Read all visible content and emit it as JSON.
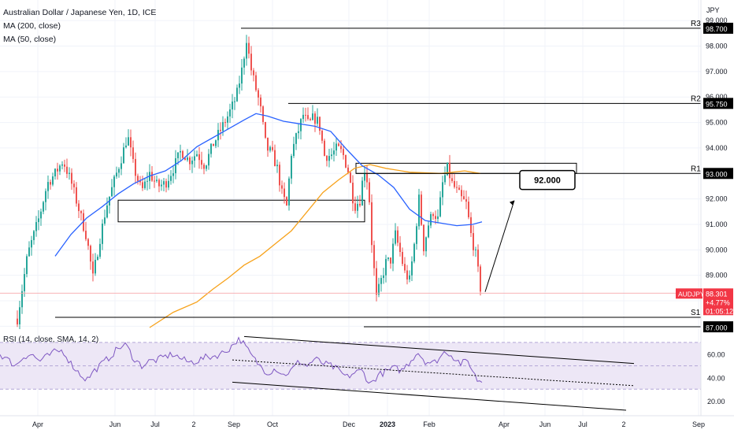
{
  "legend": {
    "title": "Australian Dollar / Japanese Yen, 1D, ICE",
    "ma200": "MA (200, close)",
    "ma50": "MA (50, close)",
    "rsi": "RSI (14, close, SMA, 14, 2)"
  },
  "colors": {
    "up": "#26a69a",
    "down": "#ef5350",
    "ma50": "#2962ff",
    "ma200": "#f7a21b",
    "rsi": "#7e57c2",
    "rsi_band": "#ede7f6",
    "level": "#000000",
    "price_badge": "#f23645"
  },
  "chart_data": {
    "type": "candlestick",
    "symbol": "AUDJPY",
    "currency": "JPY",
    "y_axis": {
      "range": [
        86.95,
        99.5
      ],
      "ticks": [
        "99.000",
        "98.000",
        "97.000",
        "96.000",
        "95.000",
        "94.000",
        "93.000",
        "92.000",
        "91.000",
        "90.000",
        "89.000",
        "88.000",
        "87.000"
      ]
    },
    "x_axis": {
      "ticks": [
        "Apr",
        "Jun",
        "Jul",
        "2",
        "Sep",
        "Oct",
        "Dec",
        "2023",
        "Feb",
        "Apr",
        "Jun",
        "Jul",
        "2",
        "Sep"
      ]
    },
    "last_price": {
      "symbol": "AUDJPY",
      "value": "88.301",
      "change": "+4.77%",
      "countdown": "01:05:12"
    },
    "levels": [
      {
        "label": "R3",
        "value": "98.700",
        "price": 98.7
      },
      {
        "label": "R2",
        "value": "95.750",
        "price": 95.75
      },
      {
        "label": "R1",
        "value": "93.000",
        "price": 93.0
      },
      {
        "label": "S1",
        "value": "87.350",
        "price": 87.35
      }
    ],
    "axis_extra_label": "87.000",
    "target": {
      "label": "92.000",
      "price": 92.0
    },
    "resistance_box": [
      93.0,
      93.4
    ],
    "support_box": [
      91.1,
      91.95
    ],
    "ma50_anchor": [
      [
        70,
        89.75
      ],
      [
        90,
        90.6
      ],
      [
        110,
        91.25
      ],
      [
        130,
        91.7
      ],
      [
        150,
        92.2
      ],
      [
        170,
        92.6
      ],
      [
        190,
        92.9
      ],
      [
        210,
        93.1
      ],
      [
        230,
        93.5
      ],
      [
        250,
        94.05
      ],
      [
        270,
        94.4
      ],
      [
        290,
        94.75
      ],
      [
        310,
        95.1
      ],
      [
        325,
        95.35
      ],
      [
        340,
        95.25
      ],
      [
        360,
        95.05
      ],
      [
        380,
        94.95
      ],
      [
        400,
        94.85
      ],
      [
        420,
        94.65
      ],
      [
        440,
        93.95
      ],
      [
        460,
        93.3
      ],
      [
        480,
        92.95
      ],
      [
        500,
        92.45
      ],
      [
        520,
        91.6
      ],
      [
        540,
        91.15
      ],
      [
        560,
        91.05
      ],
      [
        580,
        90.95
      ],
      [
        600,
        91.0
      ],
      [
        612,
        91.1
      ]
    ],
    "ma200_anchor": [
      [
        190,
        86.95
      ],
      [
        220,
        87.55
      ],
      [
        250,
        87.95
      ],
      [
        270,
        88.45
      ],
      [
        290,
        88.9
      ],
      [
        310,
        89.4
      ],
      [
        330,
        89.75
      ],
      [
        350,
        90.25
      ],
      [
        370,
        90.75
      ],
      [
        390,
        91.5
      ],
      [
        410,
        92.25
      ],
      [
        430,
        92.75
      ],
      [
        450,
        93.2
      ],
      [
        470,
        93.35
      ],
      [
        490,
        93.2
      ],
      [
        520,
        93.05
      ],
      [
        560,
        93.0
      ],
      [
        590,
        93.1
      ],
      [
        610,
        93.0
      ]
    ],
    "price_anchor": [
      [
        22,
        87.3
      ],
      [
        35,
        89.8
      ],
      [
        50,
        91.3
      ],
      [
        60,
        92.6
      ],
      [
        70,
        93.0
      ],
      [
        80,
        93.5
      ],
      [
        90,
        92.7
      ],
      [
        100,
        91.6
      ],
      [
        110,
        90.5
      ],
      [
        118,
        88.9
      ],
      [
        126,
        90.3
      ],
      [
        135,
        91.7
      ],
      [
        145,
        92.7
      ],
      [
        155,
        93.7
      ],
      [
        162,
        94.5
      ],
      [
        170,
        93.2
      ],
      [
        180,
        92.3
      ],
      [
        190,
        93.0
      ],
      [
        200,
        92.5
      ],
      [
        210,
        92.6
      ],
      [
        220,
        93.2
      ],
      [
        230,
        93.9
      ],
      [
        240,
        93.5
      ],
      [
        250,
        93.8
      ],
      [
        260,
        93.3
      ],
      [
        270,
        94.1
      ],
      [
        280,
        94.7
      ],
      [
        290,
        95.3
      ],
      [
        300,
        96.0
      ],
      [
        308,
        97.2
      ],
      [
        313,
        98.3
      ],
      [
        318,
        97.2
      ],
      [
        325,
        96.3
      ],
      [
        330,
        95.7
      ],
      [
        338,
        94.0
      ],
      [
        345,
        93.8
      ],
      [
        352,
        93.2
      ],
      [
        358,
        92.2
      ],
      [
        364,
        91.7
      ],
      [
        370,
        93.8
      ],
      [
        378,
        94.6
      ],
      [
        385,
        95.3
      ],
      [
        392,
        94.9
      ],
      [
        398,
        95.2
      ],
      [
        405,
        95.0
      ],
      [
        412,
        93.7
      ],
      [
        420,
        93.7
      ],
      [
        428,
        94.0
      ],
      [
        435,
        93.8
      ],
      [
        442,
        93.1
      ],
      [
        450,
        91.7
      ],
      [
        458,
        92.0
      ],
      [
        462,
        93.3
      ],
      [
        468,
        92.5
      ],
      [
        472,
        90.3
      ],
      [
        478,
        88.1
      ],
      [
        484,
        88.8
      ],
      [
        490,
        89.5
      ],
      [
        496,
        89.6
      ],
      [
        502,
        90.6
      ],
      [
        508,
        89.9
      ],
      [
        514,
        89.1
      ],
      [
        520,
        88.8
      ],
      [
        526,
        90.2
      ],
      [
        532,
        92.0
      ],
      [
        538,
        90.1
      ],
      [
        544,
        91.0
      ],
      [
        550,
        91.5
      ],
      [
        556,
        91.2
      ],
      [
        562,
        92.6
      ],
      [
        568,
        93.2
      ],
      [
        574,
        92.6
      ],
      [
        580,
        92.3
      ],
      [
        586,
        92.0
      ],
      [
        592,
        91.8
      ],
      [
        598,
        90.6
      ],
      [
        604,
        89.8
      ],
      [
        610,
        88.5
      ],
      [
        612,
        88.3
      ]
    ],
    "rsi": {
      "ticks": [
        "60.00",
        "40.00",
        "20.00"
      ],
      "range": [
        10,
        80
      ],
      "band": [
        30,
        70
      ],
      "mid": 50,
      "series_anchor": [
        [
          0,
          60
        ],
        [
          10,
          55
        ],
        [
          20,
          50
        ],
        [
          30,
          58
        ],
        [
          40,
          60
        ],
        [
          50,
          54
        ],
        [
          60,
          58
        ],
        [
          70,
          62
        ],
        [
          80,
          63
        ],
        [
          90,
          52
        ],
        [
          100,
          44
        ],
        [
          110,
          38
        ],
        [
          120,
          46
        ],
        [
          130,
          52
        ],
        [
          140,
          58
        ],
        [
          150,
          65
        ],
        [
          160,
          68
        ],
        [
          170,
          56
        ],
        [
          180,
          50
        ],
        [
          190,
          54
        ],
        [
          200,
          55
        ],
        [
          210,
          58
        ],
        [
          220,
          60
        ],
        [
          230,
          56
        ],
        [
          240,
          53
        ],
        [
          250,
          54
        ],
        [
          260,
          57
        ],
        [
          270,
          58
        ],
        [
          280,
          60
        ],
        [
          290,
          64
        ],
        [
          300,
          71
        ],
        [
          305,
          73
        ],
        [
          310,
          68
        ],
        [
          320,
          58
        ],
        [
          330,
          50
        ],
        [
          340,
          44
        ],
        [
          350,
          48
        ],
        [
          360,
          42
        ],
        [
          370,
          46
        ],
        [
          380,
          54
        ],
        [
          390,
          50
        ],
        [
          400,
          56
        ],
        [
          410,
          52
        ],
        [
          420,
          50
        ],
        [
          430,
          46
        ],
        [
          440,
          40
        ],
        [
          450,
          44
        ],
        [
          460,
          46
        ],
        [
          470,
          34
        ],
        [
          480,
          42
        ],
        [
          490,
          45
        ],
        [
          500,
          48
        ],
        [
          510,
          46
        ],
        [
          520,
          53
        ],
        [
          530,
          62
        ],
        [
          540,
          54
        ],
        [
          550,
          52
        ],
        [
          560,
          58
        ],
        [
          566,
          63
        ],
        [
          575,
          58
        ],
        [
          585,
          52
        ],
        [
          595,
          54
        ],
        [
          600,
          46
        ],
        [
          606,
          38
        ],
        [
          612,
          37
        ]
      ],
      "channel_upper": [
        [
          310,
          75
        ],
        [
          805,
          52
        ]
      ],
      "channel_mid": [
        [
          295,
          55
        ],
        [
          805,
          33
        ]
      ],
      "channel_lower": [
        [
          295,
          36
        ],
        [
          795,
          12
        ]
      ]
    }
  }
}
